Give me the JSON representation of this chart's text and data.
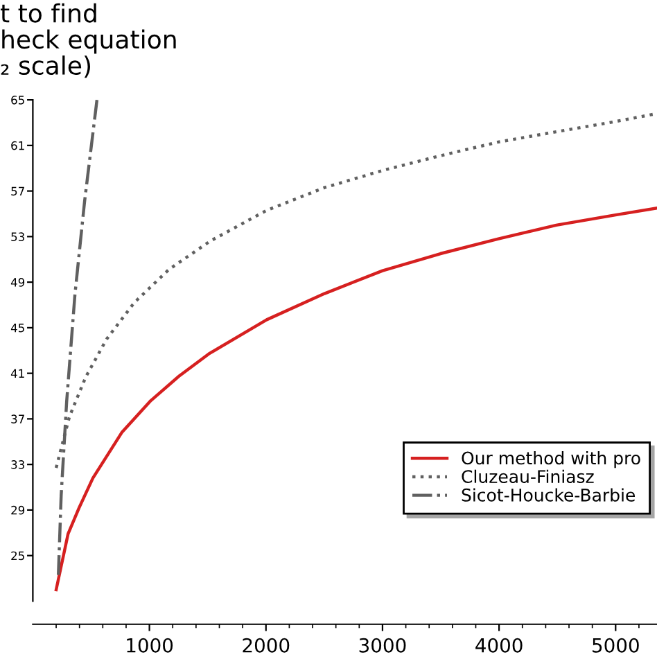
{
  "chart_data": {
    "type": "line",
    "title": "t to find\nheck equation\n₂ scale)",
    "xlim": [
      0,
      5355
    ],
    "ylim": [
      21,
      65
    ],
    "xticks": [
      1000,
      2000,
      3000,
      4000,
      5000
    ],
    "yticks": [
      25,
      29,
      33,
      37,
      41,
      45,
      49,
      53,
      57,
      61,
      65
    ],
    "grid": false,
    "legend": "bottom right",
    "marker": "none",
    "series": [
      {
        "name": "Our method with pro",
        "color": "#d62020",
        "line_style": "solid",
        "x": [
          200,
          302,
          397,
          515,
          763,
          1012,
          1260,
          1509,
          2006,
          2503,
          3000,
          3497,
          3994,
          4491,
          5000,
          5355
        ],
        "values": [
          22.0,
          26.9,
          29.2,
          31.8,
          35.8,
          38.6,
          40.8,
          42.7,
          45.7,
          48.0,
          50.0,
          51.5,
          52.8,
          54.0,
          54.9,
          55.5
        ]
      },
      {
        "name": "Cluzeau-Finiasz",
        "color": "#606060",
        "line_style": "dotted",
        "x": [
          200,
          314,
          455,
          633,
          870,
          1166,
          1521,
          2006,
          2503,
          3000,
          3497,
          3994,
          4491,
          5000,
          5355
        ],
        "values": [
          32.7,
          37.2,
          40.7,
          44.0,
          47.2,
          50.1,
          52.6,
          55.3,
          57.3,
          58.8,
          60.1,
          61.3,
          62.2,
          63.1,
          63.8
        ]
      },
      {
        "name": "Sicot-Houcke-Barbie",
        "color": "#606060",
        "line_style": "dashdot",
        "x": [
          219,
          243,
          290,
          361,
          444,
          550
        ],
        "values": [
          23.3,
          30.3,
          38.5,
          47.9,
          56.1,
          65
        ]
      }
    ]
  }
}
